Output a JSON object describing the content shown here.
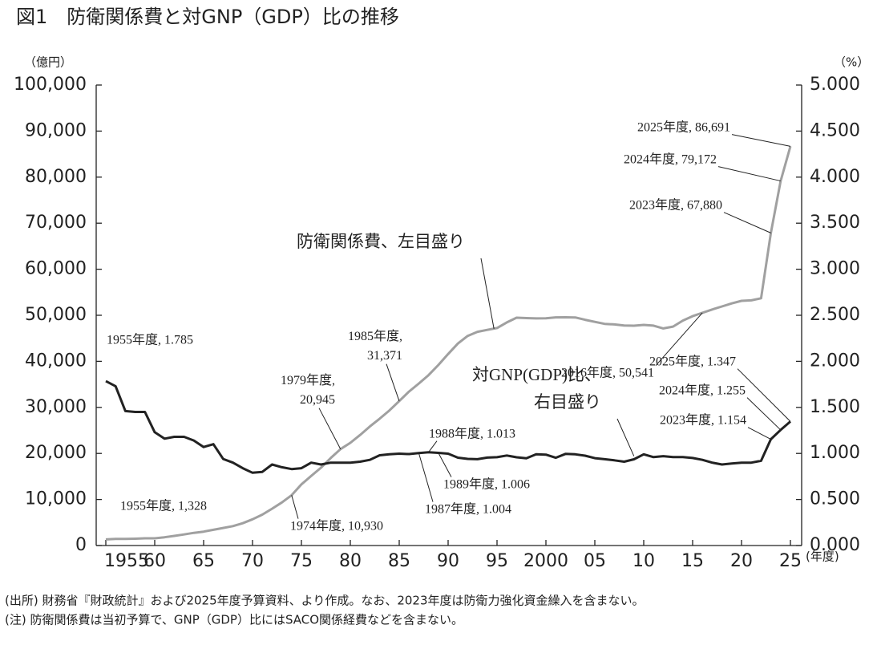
{
  "chart_data": {
    "type": "line",
    "title": "図1　防衛関係費と対GNP（GDP）比の推移",
    "y_label": "（億円）",
    "y2_label": "（%）",
    "x_label": "(年度)",
    "notes": [
      "(出所) 財務省『財政統計』および2025年度予算資料、より作成。なお、2023年度は防衛力強化資金繰入を含まない。",
      "(注) 防衛関係費は当初予算で、GNP（GDP）比にはSACO関係経費などを含まない。"
    ],
    "x": [
      1955,
      1956,
      1957,
      1958,
      1959,
      1960,
      1961,
      1962,
      1963,
      1964,
      1965,
      1966,
      1967,
      1968,
      1969,
      1970,
      1971,
      1972,
      1973,
      1974,
      1975,
      1976,
      1977,
      1978,
      1979,
      1980,
      1981,
      1982,
      1983,
      1984,
      1985,
      1986,
      1987,
      1988,
      1989,
      1990,
      1991,
      1992,
      1993,
      1994,
      1995,
      1996,
      1997,
      1998,
      1999,
      2000,
      2001,
      2002,
      2003,
      2004,
      2005,
      2006,
      2007,
      2008,
      2009,
      2010,
      2011,
      2012,
      2013,
      2014,
      2015,
      2016,
      2017,
      2018,
      2019,
      2020,
      2021,
      2022,
      2023,
      2024,
      2025
    ],
    "xlim": [
      1955,
      2025
    ],
    "xticks": [
      1955,
      {
        "value": 1960,
        "label": "60"
      },
      {
        "value": 1965,
        "label": "65"
      },
      {
        "value": 1970,
        "label": "70"
      },
      {
        "value": 1975,
        "label": "75"
      },
      {
        "value": 1980,
        "label": "80"
      },
      {
        "value": 1985,
        "label": "85"
      },
      {
        "value": 1990,
        "label": "90"
      },
      {
        "value": 1995,
        "label": "95"
      },
      2000,
      {
        "value": 2005,
        "label": "05"
      },
      {
        "value": 2010,
        "label": "10"
      },
      {
        "value": 2015,
        "label": "15"
      },
      {
        "value": 2020,
        "label": "20"
      },
      {
        "value": 2025,
        "label": "25"
      }
    ],
    "ylim": [
      0,
      100000
    ],
    "yticks": [
      0,
      {
        "value": 10000,
        "label": "10,000"
      },
      {
        "value": 20000,
        "label": "20,000"
      },
      {
        "value": 30000,
        "label": "30,000"
      },
      {
        "value": 40000,
        "label": "40,000"
      },
      {
        "value": 50000,
        "label": "50,000"
      },
      {
        "value": 60000,
        "label": "60,000"
      },
      {
        "value": 70000,
        "label": "70,000"
      },
      {
        "value": 80000,
        "label": "80,000"
      },
      {
        "value": 90000,
        "label": "90,000"
      },
      {
        "value": 100000,
        "label": "100,000"
      }
    ],
    "y2lim": [
      0,
      5
    ],
    "y2ticks": [
      {
        "value": 0,
        "label": "0.000"
      },
      {
        "value": 0.5,
        "label": "0.500"
      },
      {
        "value": 1,
        "label": "1.000"
      },
      {
        "value": 1.5,
        "label": "1.500"
      },
      {
        "value": 2,
        "label": "2.000"
      },
      {
        "value": 2.5,
        "label": "2.500"
      },
      {
        "value": 3,
        "label": "3.000"
      },
      {
        "value": 3.5,
        "label": "3.500"
      },
      {
        "value": 4,
        "label": "4.000"
      },
      {
        "value": 4.5,
        "label": "4.500"
      },
      {
        "value": 5,
        "label": "5.000"
      }
    ],
    "series": [
      {
        "name": "防衛関係費、左目盛り",
        "color": "#a0a0a0",
        "values": [
          1328,
          1429,
          1435,
          1485,
          1560,
          1569,
          1803,
          2085,
          2412,
          2751,
          3014,
          3407,
          3809,
          4221,
          4838,
          5695,
          6709,
          8002,
          9355,
          10930,
          13273,
          15124,
          16906,
          19010,
          20945,
          22302,
          24000,
          25861,
          27542,
          29346,
          31371,
          33435,
          35174,
          37003,
          39198,
          41593,
          43860,
          45518,
          46406,
          46835,
          47236,
          48455,
          49475,
          49397,
          49322,
          49358,
          49553,
          49560,
          49530,
          49030,
          48564,
          48139,
          48016,
          47796,
          47741,
          47903,
          47752,
          47138,
          47538,
          48848,
          49801,
          50541,
          51251,
          51911,
          52574,
          53133,
          53235,
          53687,
          67880,
          79172,
          86691
        ]
      },
      {
        "name": "対GNP(GDP)比、右目盛り",
        "color": "#222222",
        "axis": "y2",
        "values": [
          1.785,
          1.73,
          1.46,
          1.45,
          1.45,
          1.23,
          1.16,
          1.18,
          1.18,
          1.14,
          1.07,
          1.1,
          0.94,
          0.9,
          0.84,
          0.79,
          0.8,
          0.88,
          0.85,
          0.83,
          0.84,
          0.9,
          0.88,
          0.9,
          0.9,
          0.9,
          0.91,
          0.93,
          0.98,
          0.991,
          0.997,
          0.993,
          1.004,
          1.013,
          1.006,
          0.997,
          0.954,
          0.941,
          0.937,
          0.955,
          0.959,
          0.977,
          0.958,
          0.947,
          0.991,
          0.987,
          0.953,
          0.995,
          0.99,
          0.976,
          0.949,
          0.937,
          0.925,
          0.91,
          0.936,
          0.99,
          0.96,
          0.97,
          0.96,
          0.96,
          0.95,
          0.93,
          0.9,
          0.88,
          0.89,
          0.9,
          0.9,
          0.92,
          1.154,
          1.255,
          1.347
        ]
      }
    ],
    "annotations": [
      "1955年度, 1.785",
      "1955年度, 1,328",
      "1974年度, 10,930",
      "1979年度, 20,945",
      "1985年度, 31,371",
      "1988年度, 1.013",
      "1989年度, 1.006",
      "1987年度, 1.004",
      "2016年度, 50,541",
      "2023年度, 67,880",
      "2024年度, 79,172",
      "2025年度, 86,691",
      "2025年度, 1.347",
      "2024年度, 1.255",
      "2023年度, 1.154"
    ]
  }
}
